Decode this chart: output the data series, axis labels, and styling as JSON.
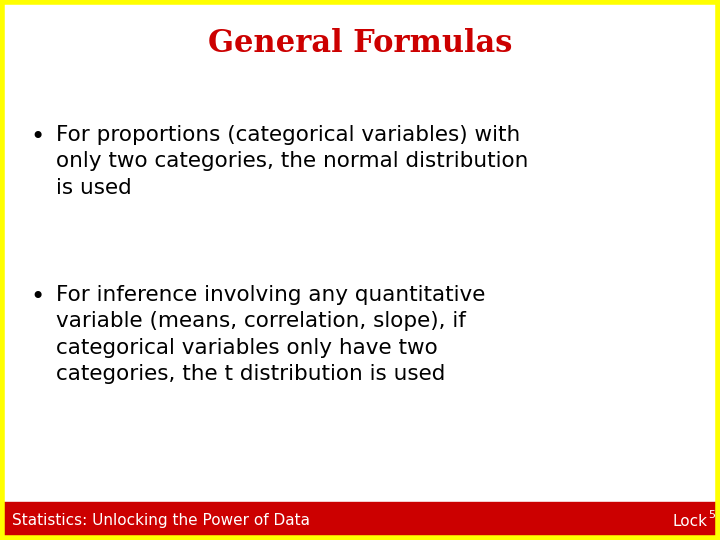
{
  "title": "General Formulas",
  "title_color": "#cc0000",
  "title_fontsize": 22,
  "bullet1_lines": [
    "For proportions (categorical variables) with",
    "only two categories, the normal distribution",
    "is used"
  ],
  "bullet2_lines": [
    "For inference involving any quantitative",
    "variable (means, correlation, slope), if",
    "categorical variables only have two",
    "categories, the t distribution is used"
  ],
  "bullet_fontsize": 15.5,
  "bullet_color": "#000000",
  "footer_text_left": "Statistics: Unlocking the Power of Data",
  "footer_text_right": "Lock",
  "footer_superscript": "5",
  "footer_fontsize": 11,
  "footer_bg_color": "#cc0000",
  "footer_text_color": "#ffffff",
  "background_color": "#ffffff",
  "border_color": "#ffff00",
  "border_linewidth": 4,
  "fig_width": 7.2,
  "fig_height": 5.4,
  "fig_dpi": 100
}
